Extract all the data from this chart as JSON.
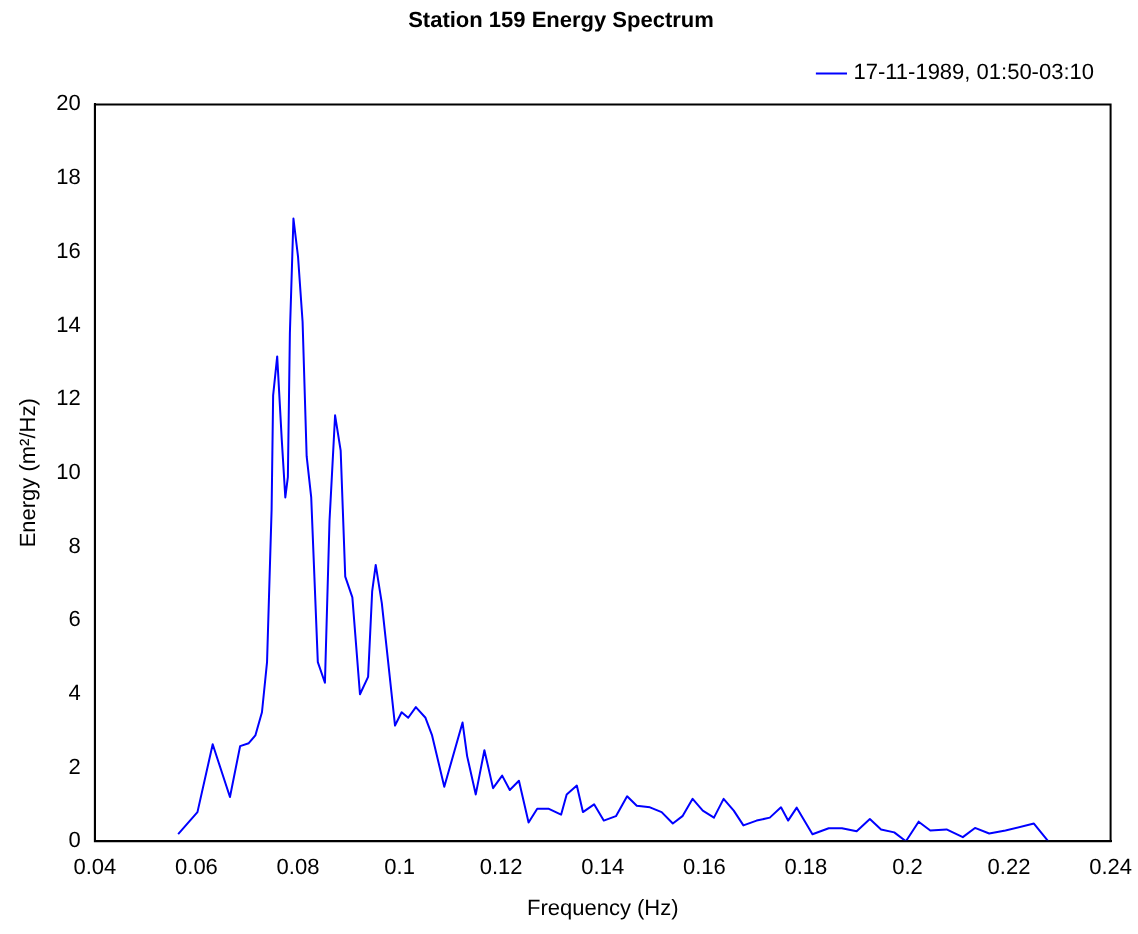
{
  "chart_data": {
    "type": "line",
    "title": "Station 159 Energy Spectrum",
    "xlabel": "Frequency (Hz)",
    "ylabel": "Energy (m²/Hz)",
    "xlim": [
      0.04,
      0.24
    ],
    "xticks": [
      0.04,
      0.06,
      0.08,
      0.1,
      0.12,
      0.14,
      0.16,
      0.18,
      0.2,
      0.22,
      0.24
    ],
    "ylim": [
      0,
      20
    ],
    "yticks": [
      0,
      2,
      4,
      6,
      8,
      10,
      12,
      14,
      16,
      18,
      20
    ],
    "grid": false,
    "legend": "top right",
    "marker": "none",
    "line_style": "solid",
    "series": [
      {
        "name": "17-11-1989, 01:50-03:10",
        "color": "#0000ff",
        "x": [
          0.0564,
          0.0602,
          0.0632,
          0.0666,
          0.0686,
          0.0703,
          0.0716,
          0.0729,
          0.0739,
          0.0748,
          0.0751,
          0.0759,
          0.0768,
          0.0775,
          0.078,
          0.0784,
          0.0791,
          0.08,
          0.0809,
          0.0817,
          0.0826,
          0.0839,
          0.0853,
          0.0862,
          0.0873,
          0.0884,
          0.0893,
          0.0907,
          0.0922,
          0.0938,
          0.0946,
          0.0953,
          0.0965,
          0.0991,
          0.1004,
          0.1017,
          0.1032,
          0.1051,
          0.1064,
          0.1088,
          0.1124,
          0.1133,
          0.115,
          0.1167,
          0.1184,
          0.1202,
          0.1217,
          0.1235,
          0.1254,
          0.1271,
          0.1294,
          0.1318,
          0.1329,
          0.1349,
          0.1361,
          0.1383,
          0.1402,
          0.1426,
          0.1448,
          0.1467,
          0.1493,
          0.1516,
          0.1538,
          0.1557,
          0.1577,
          0.1597,
          0.1619,
          0.1638,
          0.1658,
          0.1677,
          0.1703,
          0.1729,
          0.1751,
          0.1765,
          0.1782,
          0.1813,
          0.1845,
          0.1871,
          0.19,
          0.1926,
          0.1948,
          0.1974,
          0.1997,
          0.2022,
          0.2045,
          0.2077,
          0.2109,
          0.2133,
          0.2161,
          0.2193,
          0.2249,
          0.2277
        ],
        "values": [
          0.19,
          0.79,
          2.63,
          1.2,
          2.58,
          2.66,
          2.87,
          3.5,
          4.86,
          9.0,
          12.1,
          13.16,
          10.9,
          9.33,
          9.88,
          13.8,
          16.9,
          15.87,
          14.1,
          10.45,
          9.33,
          4.86,
          4.3,
          8.69,
          11.56,
          10.6,
          7.18,
          6.62,
          3.99,
          4.46,
          6.78,
          7.5,
          6.46,
          3.14,
          3.5,
          3.35,
          3.64,
          3.35,
          2.87,
          1.48,
          3.22,
          2.31,
          1.27,
          2.47,
          1.44,
          1.78,
          1.39,
          1.64,
          0.51,
          0.88,
          0.88,
          0.72,
          1.27,
          1.51,
          0.79,
          1.0,
          0.56,
          0.68,
          1.22,
          0.96,
          0.92,
          0.79,
          0.48,
          0.68,
          1.15,
          0.83,
          0.64,
          1.15,
          0.83,
          0.43,
          0.56,
          0.64,
          0.92,
          0.56,
          0.91,
          0.19,
          0.35,
          0.35,
          0.27,
          0.6,
          0.32,
          0.24,
          0,
          0.53,
          0.29,
          0.32,
          0.11,
          0.36,
          0.21,
          0.29,
          0.48,
          0
        ]
      }
    ]
  }
}
